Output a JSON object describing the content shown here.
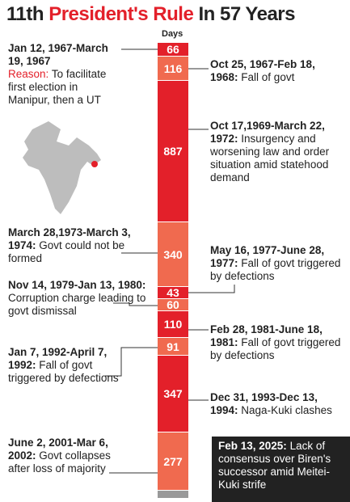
{
  "title": {
    "number": "11th",
    "highlight": "President's Rule",
    "rest": "In 57 Years"
  },
  "bar_label": "Days",
  "entries": [
    {
      "days": "66",
      "dates": "Jan 12, 1967-March 19, 1967",
      "reason_label": "Reason:",
      "text": "To facilitate first election in Manipur, then a UT"
    },
    {
      "days": "116",
      "dates": "Oct 25, 1967-Feb 18, 1968:",
      "text": "Fall of govt"
    },
    {
      "days": "887",
      "dates": "Oct 17,1969-March 22, 1972:",
      "text": "Insurgency and worsening law and order situation amid statehood demand"
    },
    {
      "days": "340",
      "dates": "March 28,1973-March 3, 1974:",
      "text": "Govt could not be formed"
    },
    {
      "days": "43",
      "dates": "May 16, 1977-June 28, 1977:",
      "text": "Fall of govt triggered by defections"
    },
    {
      "days": "60",
      "dates": "Nov 14, 1979-Jan 13, 1980:",
      "text": "Corruption charge leading to govt dismissal"
    },
    {
      "days": "110",
      "dates": "Feb 28, 1981-June 18, 1981:",
      "text": "Fall of govt triggered by defections"
    },
    {
      "days": "91",
      "dates": "Jan 7, 1992-April 7, 1992:",
      "text": "Fall of govt triggered by defections"
    },
    {
      "days": "347",
      "dates": "Dec 31, 1993-Dec 13, 1994:",
      "text": "Naga-Kuki clashes"
    },
    {
      "days": "277",
      "dates": "June 2, 2001-Mar 6, 2002:",
      "text": "Govt collapses after loss of majority"
    },
    {
      "dates": "Feb 13, 2025:",
      "text": "Lack of consensus over Biren's successor amid Meitei-Kuki strife"
    }
  ]
}
